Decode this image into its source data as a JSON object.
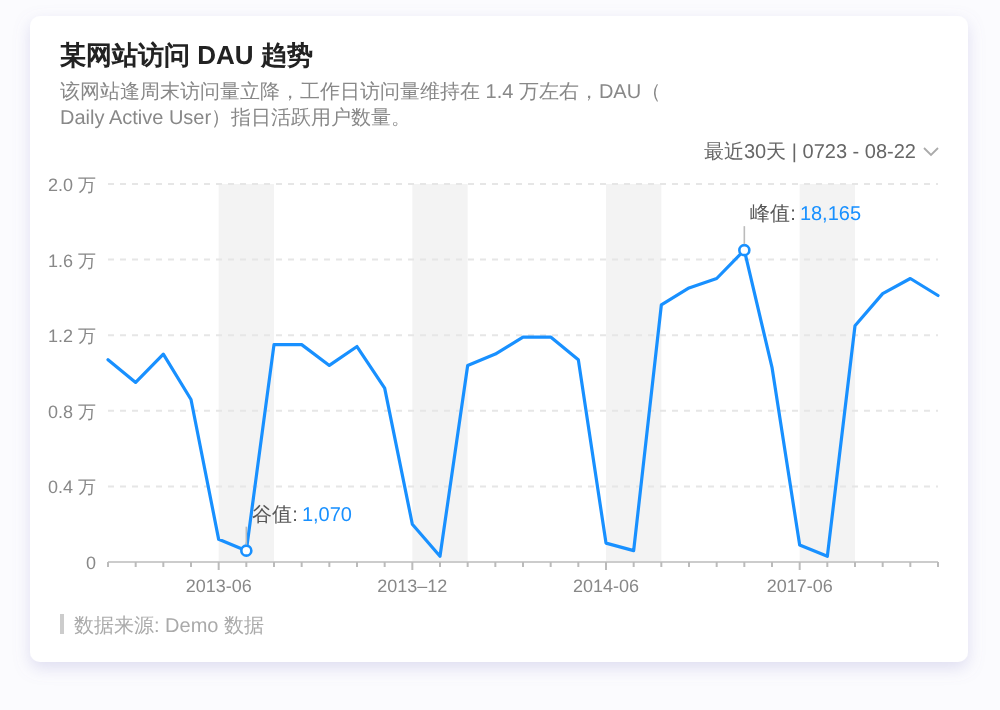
{
  "chart_data": {
    "type": "line",
    "title": "某网站访问 DAU 趋势",
    "subtitle": "该网站逢周末访问量立降，工作日访问量维持在 1.4 万左右，DAU（Daily Active User）指日活跃用户数量。",
    "categories": [
      null,
      null,
      null,
      null,
      "2013-06",
      null,
      null,
      null,
      null,
      null,
      null,
      "2013–12",
      null,
      null,
      null,
      null,
      null,
      null,
      "2014-06",
      null,
      null,
      null,
      null,
      null,
      null,
      "2017-06",
      null,
      null,
      null,
      null,
      null
    ],
    "series": [
      {
        "color": "#1890ff",
        "values": [
          1.07,
          0.95,
          1.1,
          0.86,
          0.12,
          0.06,
          1.15,
          1.15,
          1.04,
          1.14,
          0.92,
          0.2,
          0.03,
          1.04,
          1.1,
          1.19,
          1.19,
          1.07,
          0.1,
          0.06,
          1.36,
          1.45,
          1.5,
          1.65,
          1.03,
          0.09,
          0.03,
          1.25,
          1.42,
          1.5,
          1.41
        ]
      }
    ],
    "ylim": [
      0,
      2
    ],
    "yticks": [
      0,
      {
        "value": 0.4,
        "label": "0.4 万"
      },
      {
        "value": 0.8,
        "label": "0.8 万"
      },
      {
        "value": 1.2,
        "label": "1.2 万"
      },
      {
        "value": 1.6,
        "label": "1.6 万"
      },
      {
        "value": 2.0,
        "label": "2.0 万"
      }
    ],
    "grid": "y",
    "marker": "none",
    "line_style": "solid",
    "annotations": [
      "谷值: 1,070",
      "峰值: 18,165",
      "最近30天 | 0723 - 08-22",
      "数据来源: Demo 数据"
    ]
  }
}
